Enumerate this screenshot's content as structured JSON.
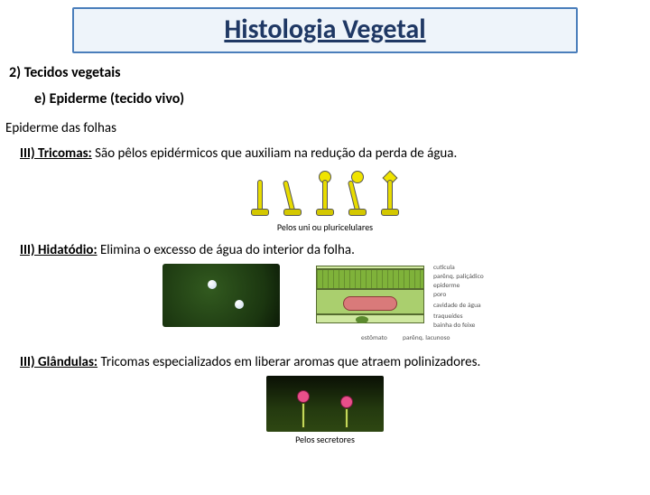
{
  "title": "Histologia Vegetal",
  "section2": "2)  Tecidos vegetais",
  "sectionE": "e)  Epiderme (tecido vivo)",
  "subheading": "Epiderme das folhas",
  "items": {
    "tricomas": {
      "label": "III) Tricomas:",
      "text": " São pêlos epidérmicos que auxiliam na redução da perda de água."
    },
    "hidatodio": {
      "label": "III) Hidatódio:",
      "text": "  Elimina o excesso de água do interior da folha."
    },
    "glandulas": {
      "label": "III) Glândulas:",
      "text": " Tricomas especializados em liberar aromas que atraem polinizadores."
    }
  },
  "captions": {
    "pelos": "Pelos uni ou pluricelulares",
    "secretores": "Pelos secretores"
  },
  "leafLabels": {
    "cuticula": "cutícula",
    "palicado": "parênq. paliçádico",
    "epiderme": "epiderme",
    "poro": "poro",
    "cavidade": "cavidade de água",
    "traqueides": "traqueídes",
    "bainha": "bainha do feixe",
    "estomato": "estômato",
    "lacunoso": "parênq. lacunoso"
  },
  "colors": {
    "titleBorder": "#4a7ebb",
    "titleBg": "#eef4fa",
    "titleText": "#1f3864"
  }
}
